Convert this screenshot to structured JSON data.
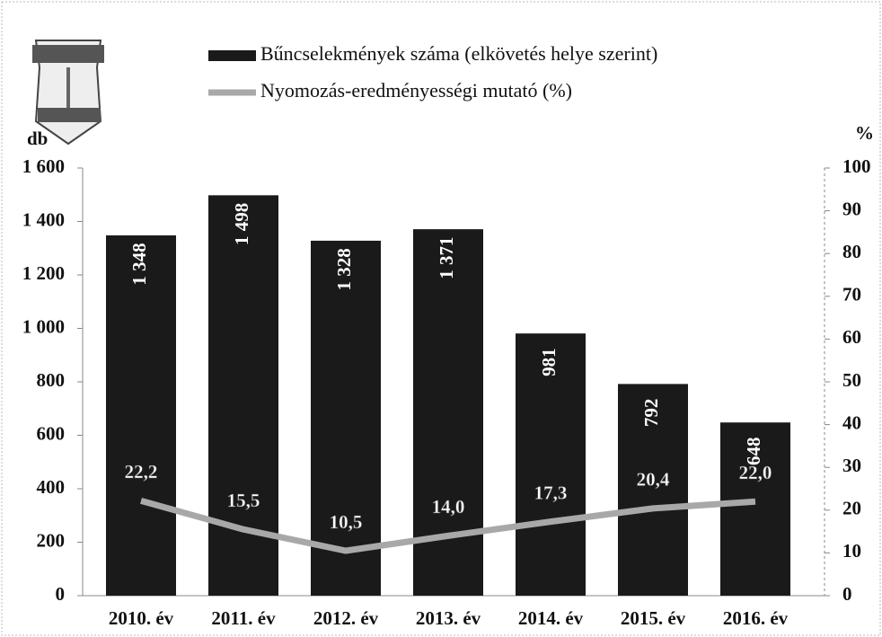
{
  "chart_data": {
    "type": "bar",
    "y_label": "db",
    "y2_label": "%",
    "categories": [
      "2010. év",
      "2011. év",
      "2012. év",
      "2013. év",
      "2014. év",
      "2015. év",
      "2016. év"
    ],
    "series": [
      {
        "name": "Bűncselekmények száma (elkövetés helye szerint)",
        "type": "bar",
        "color": "#1a1a1a",
        "values": [
          1348,
          1498,
          1328,
          1371,
          981,
          792,
          648
        ],
        "value_labels": [
          "1 348",
          "1 498",
          "1 328",
          "1 371",
          "981",
          "792",
          "648"
        ]
      },
      {
        "name": "Nyomozás-eredményességi mutató (%)",
        "type": "line",
        "axis": "y2",
        "color": "#a8a8a8",
        "values": [
          22.2,
          15.5,
          10.5,
          14.0,
          17.3,
          20.4,
          22.0
        ],
        "value_labels": [
          "22,2",
          "15,5",
          "10,5",
          "14,0",
          "17,3",
          "20,4",
          "22,0"
        ]
      }
    ],
    "ylim": [
      0,
      1600
    ],
    "yticks": [
      0,
      200,
      400,
      600,
      800,
      {
        "value": 1000,
        "label": "1 000"
      },
      {
        "value": 1200,
        "label": "1 200"
      },
      {
        "value": 1400,
        "label": "1 400"
      },
      {
        "value": 1600,
        "label": "1 600"
      }
    ],
    "y2lim": [
      0,
      100
    ],
    "y2ticks": [
      0,
      10,
      20,
      30,
      40,
      50,
      60,
      70,
      80,
      90,
      100
    ],
    "grid": false
  }
}
